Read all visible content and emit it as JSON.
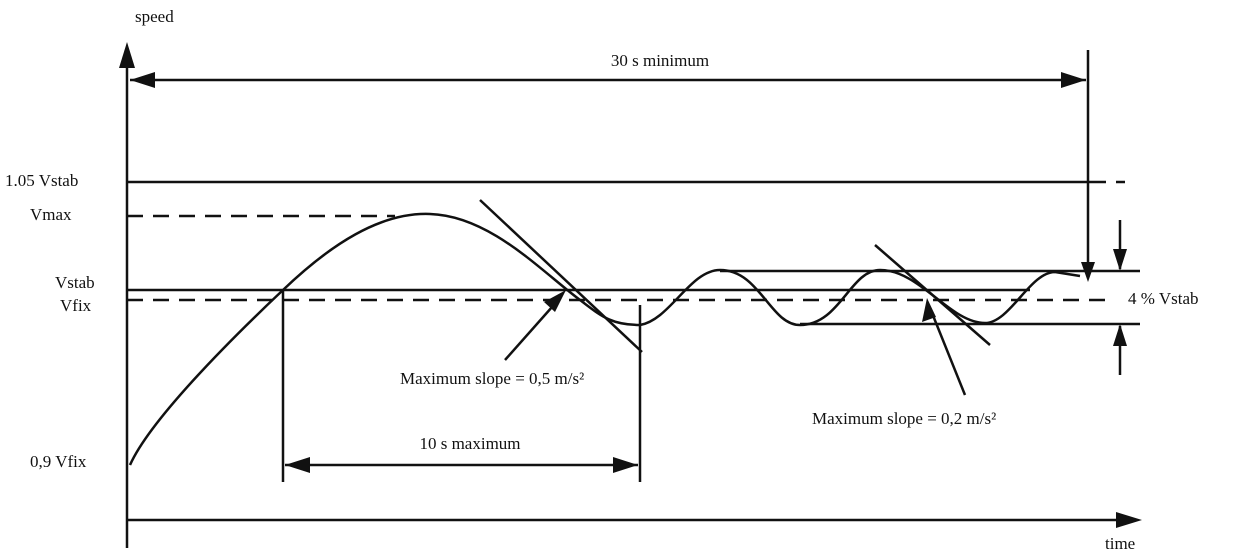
{
  "axes": {
    "y_label": "speed",
    "x_label": "time"
  },
  "levels": [
    "1.05 Vstab",
    "Vmax",
    "Vstab",
    "Vfix",
    "0,9 Vfix"
  ],
  "annotations": {
    "span_30": "30 s minimum",
    "span_10": "10 s maximum",
    "band": "4 % Vstab",
    "slope_1": "Maximum slope = 0,5 m/s²",
    "slope_2": "Maximum slope = 0,2 m/s²"
  }
}
